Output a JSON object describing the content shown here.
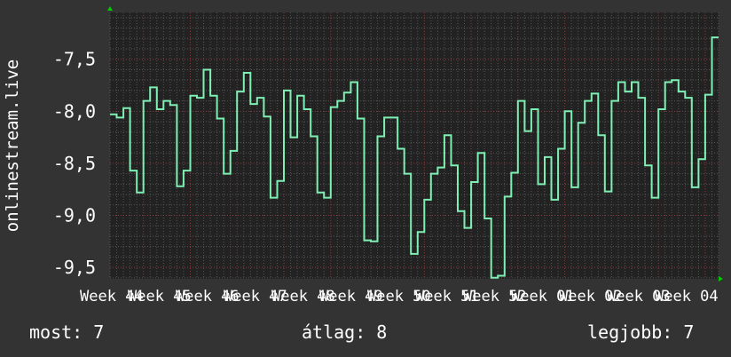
{
  "chart_data": {
    "type": "line",
    "step": true,
    "title": "",
    "xlabel": "",
    "ylabel": "onlinestream.live",
    "ylim": [
      -9.61,
      -7.05
    ],
    "yticks": [
      -7.5,
      -8.0,
      -8.5,
      -9.0,
      -9.5
    ],
    "ytick_labels": [
      "-7,5",
      "-8,0",
      "-8,5",
      "-9,0",
      "-9,5"
    ],
    "xtick_labels": [
      "Week 44",
      "Week 45",
      "Week 46",
      "Week 47",
      "Week 48",
      "Week 49",
      "Week 50",
      "Week 51",
      "Week 52",
      "Week 01",
      "Week 02",
      "Week 03",
      "Week 04"
    ],
    "grid": true,
    "colors": {
      "background": "#333333",
      "plot": "#222222",
      "line": "#7ff0b4",
      "major_grid": "#8a3a3a",
      "minor_grid": "#555555",
      "arrow": "#00cc00"
    },
    "series": [
      {
        "values": [
          -8.03,
          -8.06,
          -7.97,
          -8.57,
          -8.78,
          -7.9,
          -7.77,
          -7.98,
          -7.9,
          -7.94,
          -8.72,
          -8.57,
          -7.85,
          -7.87,
          -7.6,
          -7.85,
          -8.07,
          -8.6,
          -8.38,
          -7.81,
          -7.63,
          -7.93,
          -7.87,
          -8.05,
          -8.83,
          -8.67,
          -7.8,
          -8.25,
          -7.85,
          -7.98,
          -8.24,
          -8.78,
          -8.83,
          -7.96,
          -7.9,
          -7.82,
          -7.72,
          -8.07,
          -9.24,
          -9.25,
          -8.24,
          -8.06,
          -8.06,
          -8.36,
          -8.6,
          -9.37,
          -9.16,
          -8.85,
          -8.6,
          -8.54,
          -8.23,
          -8.52,
          -8.96,
          -9.12,
          -8.68,
          -8.4,
          -9.03,
          -9.6,
          -9.58,
          -8.82,
          -8.59,
          -7.9,
          -8.19,
          -7.98,
          -8.7,
          -8.44,
          -8.85,
          -8.36,
          -8.0,
          -8.73,
          -8.11,
          -7.9,
          -7.83,
          -8.23,
          -8.77,
          -7.9,
          -7.72,
          -7.81,
          -7.72,
          -7.87,
          -8.52,
          -8.83,
          -7.98,
          -7.72,
          -7.7,
          -7.81,
          -7.87,
          -8.73,
          -8.46,
          -7.84,
          -7.29
        ]
      }
    ]
  },
  "footer": {
    "current": "most: 7",
    "average": "átlag: 8",
    "best": "legjobb: 7"
  }
}
